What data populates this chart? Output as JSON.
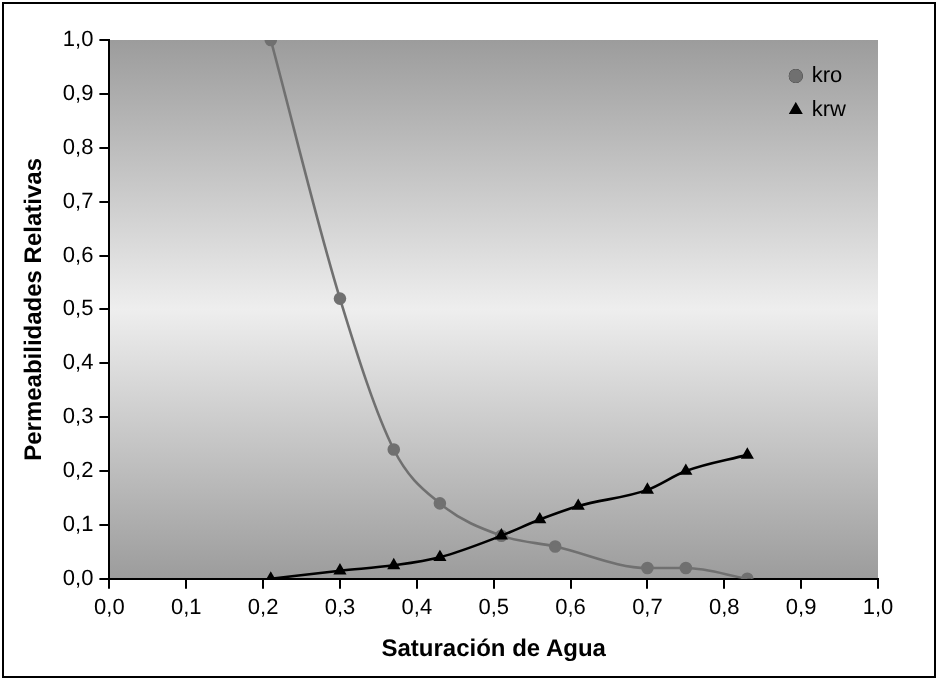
{
  "chart_data": {
    "type": "line",
    "xlabel": "Saturación de Agua",
    "ylabel": "Permeabilidades Relativas",
    "xlim": [
      0,
      1
    ],
    "xticks": [
      {
        "value": 0,
        "label": "0,0"
      },
      {
        "value": 0.1,
        "label": "0,1"
      },
      {
        "value": 0.2,
        "label": "0,2"
      },
      {
        "value": 0.3,
        "label": "0,3"
      },
      {
        "value": 0.4,
        "label": "0,4"
      },
      {
        "value": 0.5,
        "label": "0,5"
      },
      {
        "value": 0.6,
        "label": "0,6"
      },
      {
        "value": 0.7,
        "label": "0,7"
      },
      {
        "value": 0.8,
        "label": "0,8"
      },
      {
        "value": 0.9,
        "label": "0,9"
      },
      {
        "value": 1,
        "label": "1,0"
      }
    ],
    "ylim": [
      0,
      1
    ],
    "yticks": [
      {
        "value": 0,
        "label": "0,0"
      },
      {
        "value": 0.1,
        "label": "0,1"
      },
      {
        "value": 0.2,
        "label": "0,2"
      },
      {
        "value": 0.3,
        "label": "0,3"
      },
      {
        "value": 0.4,
        "label": "0,4"
      },
      {
        "value": 0.5,
        "label": "0,5"
      },
      {
        "value": 0.6,
        "label": "0,6"
      },
      {
        "value": 0.7,
        "label": "0,7"
      },
      {
        "value": 0.8,
        "label": "0,8"
      },
      {
        "value": 0.9,
        "label": "0,9"
      },
      {
        "value": 1,
        "label": "1,0"
      }
    ],
    "grid": false,
    "legend": "top right",
    "series": [
      {
        "name": "kro",
        "color": "#707070",
        "marker": "circle",
        "x": [
          0.21,
          0.3,
          0.37,
          0.43,
          0.51,
          0.58,
          0.7,
          0.75,
          0.83
        ],
        "values": [
          1.0,
          0.52,
          0.24,
          0.14,
          0.08,
          0.06,
          0.02,
          0.02,
          0.0
        ]
      },
      {
        "name": "krw",
        "color": "#000000",
        "marker": "triangle",
        "x": [
          0.21,
          0.3,
          0.37,
          0.43,
          0.51,
          0.56,
          0.61,
          0.7,
          0.75,
          0.83
        ],
        "values": [
          0.0,
          0.015,
          0.025,
          0.04,
          0.08,
          0.11,
          0.135,
          0.165,
          0.2,
          0.23
        ]
      }
    ]
  }
}
